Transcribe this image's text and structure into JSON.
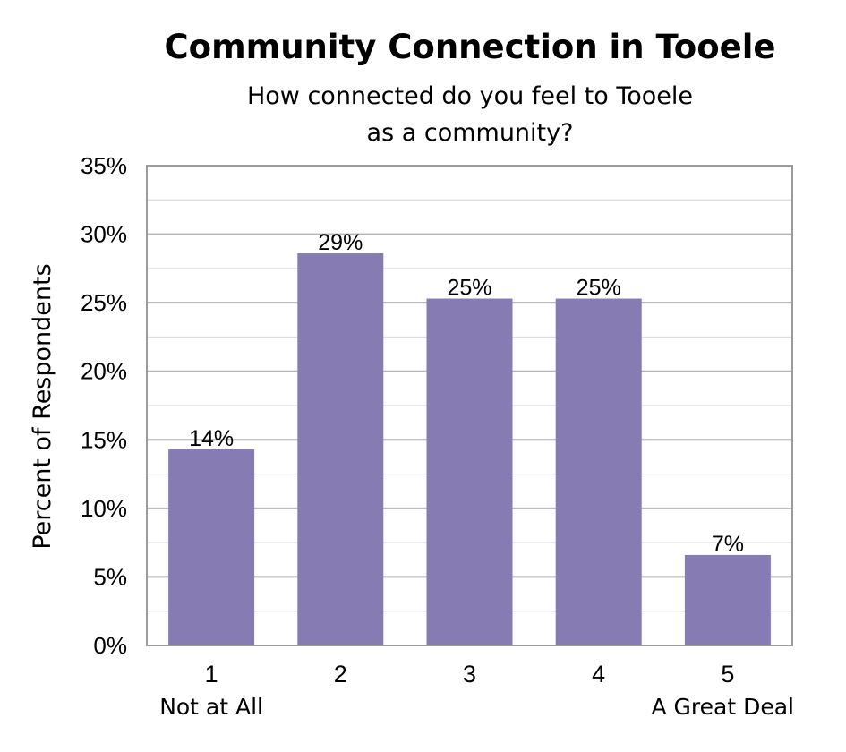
{
  "chart_data": {
    "type": "bar",
    "title": "Community Connection in Tooele",
    "subtitle_lines": [
      "How connected do you feel to Tooele",
      "as a community?"
    ],
    "xlabel": "",
    "ylabel": "Percent of Respondents",
    "categories": [
      "1",
      "2",
      "3",
      "4",
      "5"
    ],
    "category_sublabels": [
      "Not at All",
      "",
      "",
      "",
      "A Great Deal"
    ],
    "values": [
      14.3,
      28.6,
      25.3,
      25.3,
      6.6
    ],
    "data_labels": [
      "14%",
      "29%",
      "25%",
      "25%",
      "7%"
    ],
    "ylim": [
      0,
      35
    ],
    "yticks": [
      0,
      5,
      10,
      15,
      20,
      25,
      30,
      35
    ],
    "ytick_labels": [
      "0%",
      "5%",
      "10%",
      "15%",
      "20%",
      "25%",
      "30%",
      "35%"
    ],
    "minor_gridlines": true,
    "grid": true,
    "legend": "none",
    "bar_color": "#877bb4",
    "major_grid_color": "#b4b4b4",
    "minor_grid_color": "#dadada",
    "frame_color": "#9c9c9c"
  }
}
